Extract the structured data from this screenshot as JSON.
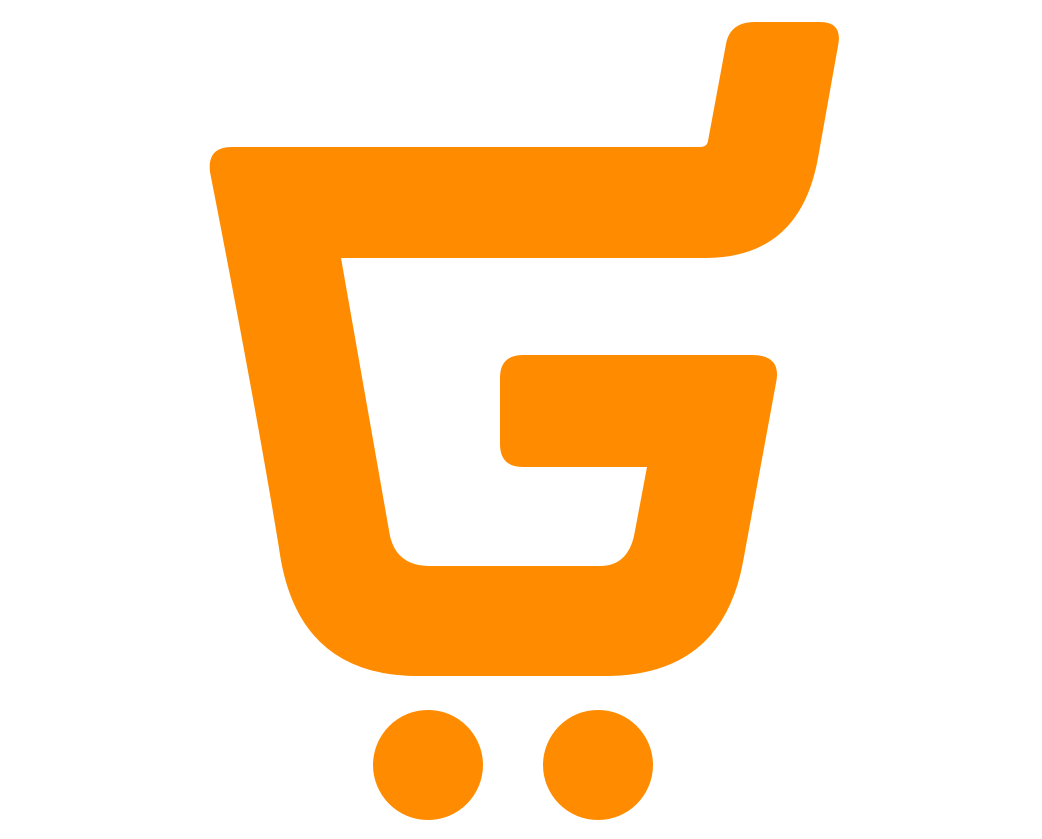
{
  "logo": {
    "name": "shopping-cart-g-logo",
    "color": "#FF8C00",
    "background": "#FFFFFF",
    "shape": "shopping cart forming the letter G with two wheels"
  }
}
